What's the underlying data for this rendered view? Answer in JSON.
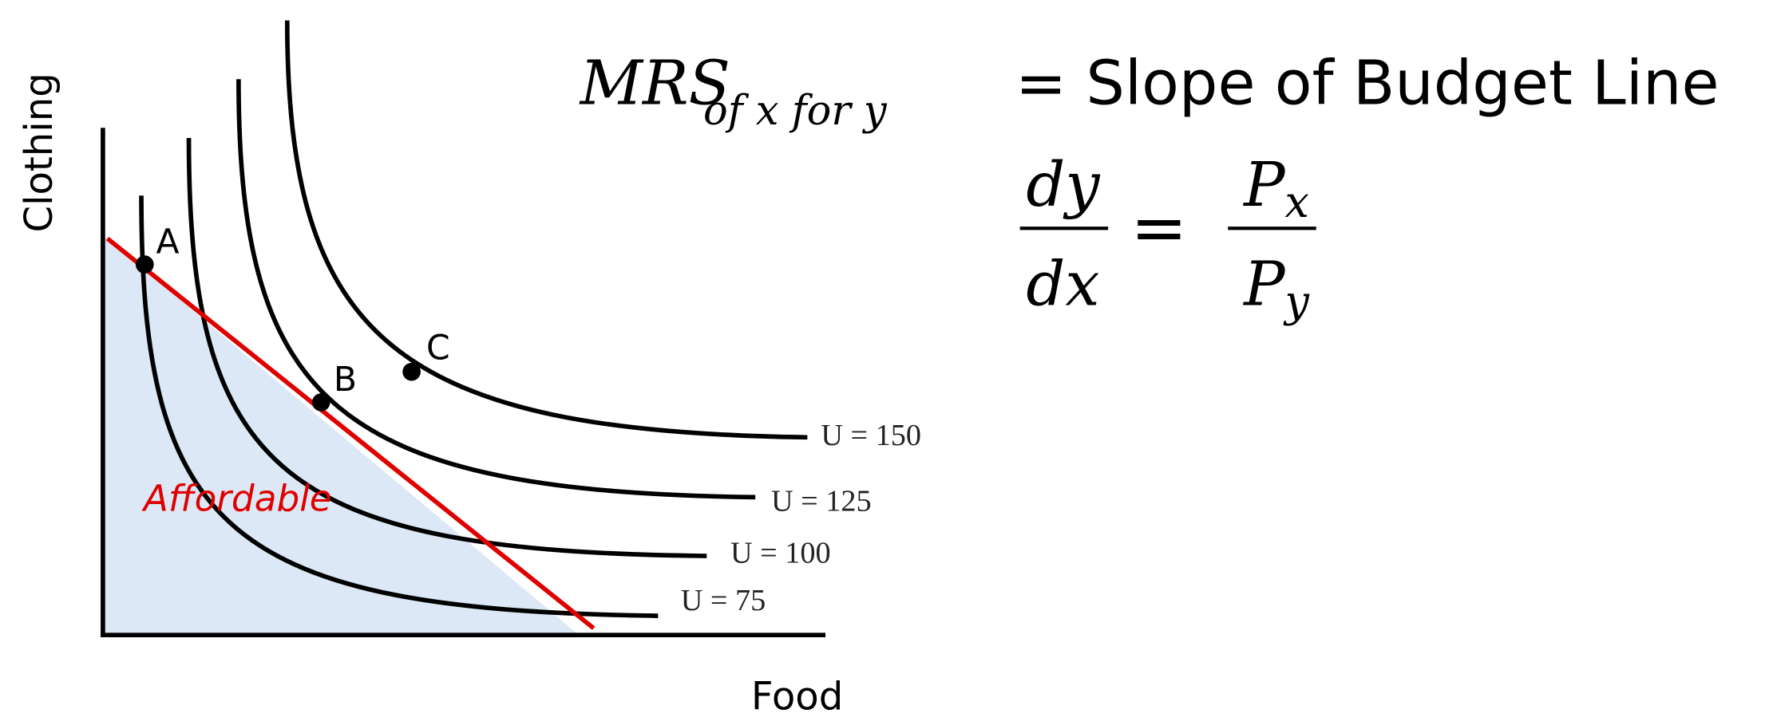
{
  "axes": {
    "y_label": "Clothing",
    "x_label": "Food"
  },
  "curves": [
    {
      "label": "U = 75"
    },
    {
      "label": "U = 100"
    },
    {
      "label": "U = 125"
    },
    {
      "label": "U = 150"
    }
  ],
  "points": [
    {
      "label": "A"
    },
    {
      "label": "B"
    },
    {
      "label": "C"
    }
  ],
  "region_label": "Affordable",
  "formula": {
    "mrs_main": "MRS",
    "mrs_sub": "of x for y",
    "rhs": "= Slope of Budget Line",
    "num_left": "dy",
    "den_left": "dx",
    "equals": "=",
    "num_right_base": "P",
    "num_right_sub": "x",
    "den_right_base": "P",
    "den_right_sub": "y"
  },
  "colors": {
    "budget_line": "#e00000",
    "affordable_fill": "#dce8f5",
    "curves": "#000000"
  }
}
